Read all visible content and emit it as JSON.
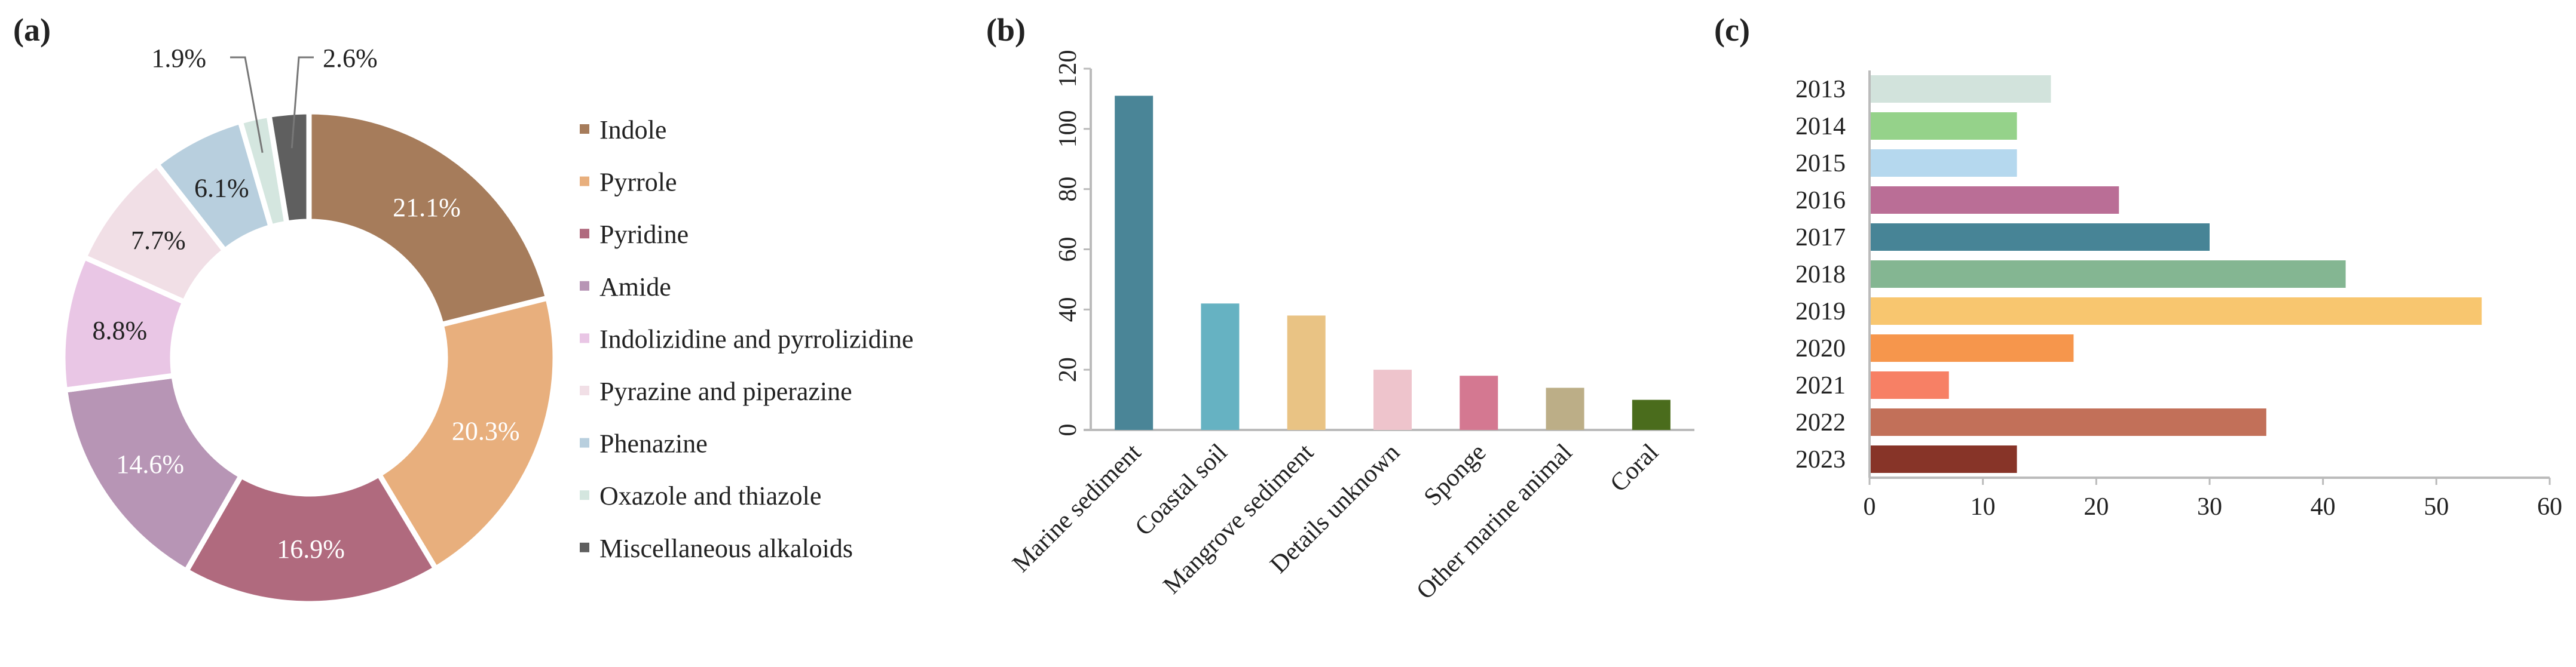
{
  "chart_data": [
    {
      "panel": "(a)",
      "type": "pie",
      "donut": true,
      "legend_position": "right",
      "labels": [
        "Indole",
        "Pyrrole",
        "Pyridine",
        "Amide",
        "Indolizidine and pyrrolizidine",
        "Pyrazine and piperazine",
        "Phenazine",
        "Oxazole and thiazole",
        "Miscellaneous alkaloids"
      ],
      "values": [
        21.1,
        20.3,
        16.9,
        14.6,
        8.8,
        7.7,
        6.1,
        1.9,
        2.6
      ],
      "data_labels": [
        "21.1%",
        "20.3%",
        "16.9%",
        "14.6%",
        "8.8%",
        "7.7%",
        "6.1%",
        "1.9%",
        "2.6%"
      ],
      "colors": [
        "#A67C5B",
        "#E8AF7D",
        "#B06A7E",
        "#B795B5",
        "#E9C6E5",
        "#F1DFE6",
        "#B8CFDE",
        "#D4E6DF",
        "#5F5F5F"
      ]
    },
    {
      "panel": "(b)",
      "type": "bar",
      "categories": [
        "Marine sediment",
        "Coastal soil",
        "Mangrove sediment",
        "Details unknown",
        "Sponge",
        "Other marine animal",
        "Coral"
      ],
      "values": [
        111,
        42,
        38,
        20,
        18,
        14,
        10
      ],
      "colors": [
        "#4A8597",
        "#66B2C2",
        "#E9C384",
        "#EEC4CC",
        "#D47891",
        "#BCAE87",
        "#4A6C1C"
      ],
      "ylim": [
        0,
        120
      ],
      "yticks": [
        "0",
        "20",
        "40",
        "60",
        "80",
        "100",
        "120"
      ],
      "grid": false
    },
    {
      "panel": "(c)",
      "type": "bar",
      "orientation": "horizontal",
      "categories": [
        "2013",
        "2014",
        "2015",
        "2016",
        "2017",
        "2018",
        "2019",
        "2020",
        "2021",
        "2022",
        "2023"
      ],
      "values": [
        16,
        13,
        13,
        22,
        30,
        42,
        54,
        18,
        7,
        35,
        13
      ],
      "colors": [
        "#D2E3DC",
        "#95D28A",
        "#B5D8EE",
        "#BA6E96",
        "#478496",
        "#84B692",
        "#F8C66F",
        "#F6964C",
        "#F78065",
        "#C27059",
        "#873428"
      ],
      "xlim": [
        0,
        60
      ],
      "xticks": [
        "0",
        "10",
        "20",
        "30",
        "40",
        "50",
        "60"
      ],
      "grid": false
    }
  ]
}
